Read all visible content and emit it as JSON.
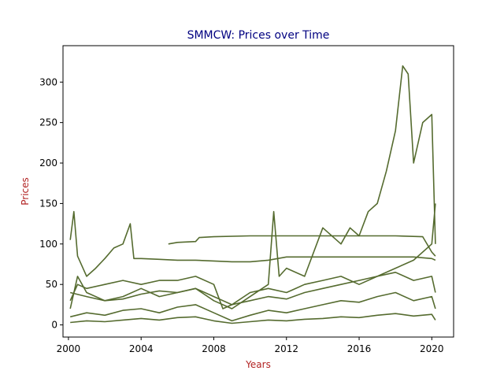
{
  "chart_data": {
    "type": "line",
    "title": "SMMCW: Prices over Time",
    "xlabel": "Years",
    "ylabel": "Prices",
    "xlim": [
      1999.7,
      2021.2
    ],
    "ylim": [
      -15,
      345
    ],
    "x_ticks": [
      2000,
      2004,
      2008,
      2012,
      2016,
      2020
    ],
    "x_tick_labels": [
      "2000",
      "2004",
      "2008",
      "2012",
      "2016",
      "2020"
    ],
    "y_ticks": [
      0,
      50,
      100,
      150,
      200,
      250,
      300
    ],
    "y_tick_labels": [
      "0",
      "50",
      "100",
      "150",
      "200",
      "250",
      "300"
    ],
    "grid": false,
    "legend": "none",
    "line_color": "#556b2f",
    "title_color": "#000080",
    "label_color": "#b22222",
    "series": [
      {
        "x": [
          2000.1,
          2000.3,
          2000.5,
          2001.0,
          2001.5,
          2002.0,
          2002.5,
          2003.0,
          2003.4,
          2003.6,
          2004.0,
          2005.0,
          2006.0,
          2007.0,
          2008.0,
          2009.0,
          2010.0,
          2011.0,
          2012.0,
          2013.0,
          2014.0,
          2015.0,
          2016.0,
          2017.0,
          2018.0,
          2019.0,
          2020.0,
          2020.2
        ],
        "y": [
          105,
          140,
          85,
          60,
          70,
          82,
          95,
          100,
          125,
          82,
          82,
          81,
          80,
          80,
          79,
          78,
          78,
          80,
          84,
          84,
          84,
          84,
          84,
          84,
          84,
          84,
          82,
          80
        ]
      },
      {
        "x": [
          2005.5,
          2006.0,
          2007.0,
          2007.2,
          2008.0,
          2010.0,
          2012.0,
          2014.0,
          2016.0,
          2018.0,
          2019.5,
          2020.0,
          2020.2
        ],
        "y": [
          100,
          102,
          103,
          108,
          109,
          110,
          110,
          110,
          110,
          110,
          109,
          90,
          85
        ]
      },
      {
        "x": [
          2000.1,
          2000.5,
          2001.0,
          2002.0,
          2003.0,
          2004.0,
          2005.0,
          2006.0,
          2007.0,
          2008.0,
          2009.0,
          2010.0,
          2011.0,
          2011.3,
          2011.6,
          2012.0,
          2013.0,
          2014.0,
          2015.0,
          2015.5,
          2016.0,
          2016.5,
          2017.0,
          2017.5,
          2018.0,
          2018.4,
          2018.7,
          2019.0,
          2019.5,
          2020.0,
          2020.2
        ],
        "y": [
          20,
          60,
          40,
          30,
          35,
          45,
          35,
          40,
          45,
          30,
          20,
          35,
          50,
          140,
          60,
          70,
          60,
          120,
          100,
          120,
          110,
          140,
          150,
          190,
          240,
          320,
          310,
          200,
          250,
          260,
          100
        ]
      },
      {
        "x": [
          2000.1,
          2000.5,
          2001.0,
          2002.0,
          2003.0,
          2004.0,
          2005.0,
          2006.0,
          2007.0,
          2008.0,
          2008.5,
          2009.0,
          2010.0,
          2011.0,
          2012.0,
          2013.0,
          2014.0,
          2015.0,
          2016.0,
          2017.0,
          2018.0,
          2019.0,
          2020.0,
          2020.2
        ],
        "y": [
          30,
          50,
          45,
          50,
          55,
          50,
          55,
          55,
          60,
          50,
          20,
          25,
          40,
          45,
          40,
          50,
          55,
          60,
          50,
          60,
          70,
          80,
          100,
          150
        ]
      },
      {
        "x": [
          2000.1,
          2001.0,
          2002.0,
          2003.0,
          2004.0,
          2005.0,
          2006.0,
          2007.0,
          2008.0,
          2009.0,
          2010.0,
          2011.0,
          2012.0,
          2013.0,
          2014.0,
          2015.0,
          2016.0,
          2017.0,
          2018.0,
          2019.0,
          2020.0,
          2020.2
        ],
        "y": [
          10,
          15,
          12,
          18,
          20,
          15,
          22,
          25,
          15,
          5,
          12,
          18,
          15,
          20,
          25,
          30,
          28,
          35,
          40,
          30,
          35,
          20
        ]
      },
      {
        "x": [
          2000.1,
          2001.0,
          2002.0,
          2003.0,
          2004.0,
          2005.0,
          2006.0,
          2007.0,
          2008.0,
          2009.0,
          2010.0,
          2011.0,
          2012.0,
          2013.0,
          2014.0,
          2015.0,
          2016.0,
          2017.0,
          2018.0,
          2019.0,
          2020.0,
          2020.2
        ],
        "y": [
          3,
          5,
          4,
          6,
          8,
          6,
          9,
          10,
          5,
          2,
          4,
          6,
          5,
          7,
          8,
          10,
          9,
          12,
          14,
          11,
          13,
          6
        ]
      },
      {
        "x": [
          2000.1,
          2001.0,
          2002.0,
          2003.0,
          2004.0,
          2005.0,
          2006.0,
          2007.0,
          2008.0,
          2009.0,
          2010.0,
          2011.0,
          2012.0,
          2013.0,
          2014.0,
          2015.0,
          2016.0,
          2017.0,
          2018.0,
          2019.0,
          2020.0,
          2020.2
        ],
        "y": [
          40,
          35,
          30,
          32,
          38,
          42,
          40,
          45,
          35,
          25,
          30,
          35,
          32,
          40,
          45,
          50,
          55,
          60,
          65,
          55,
          60,
          40
        ]
      }
    ]
  }
}
